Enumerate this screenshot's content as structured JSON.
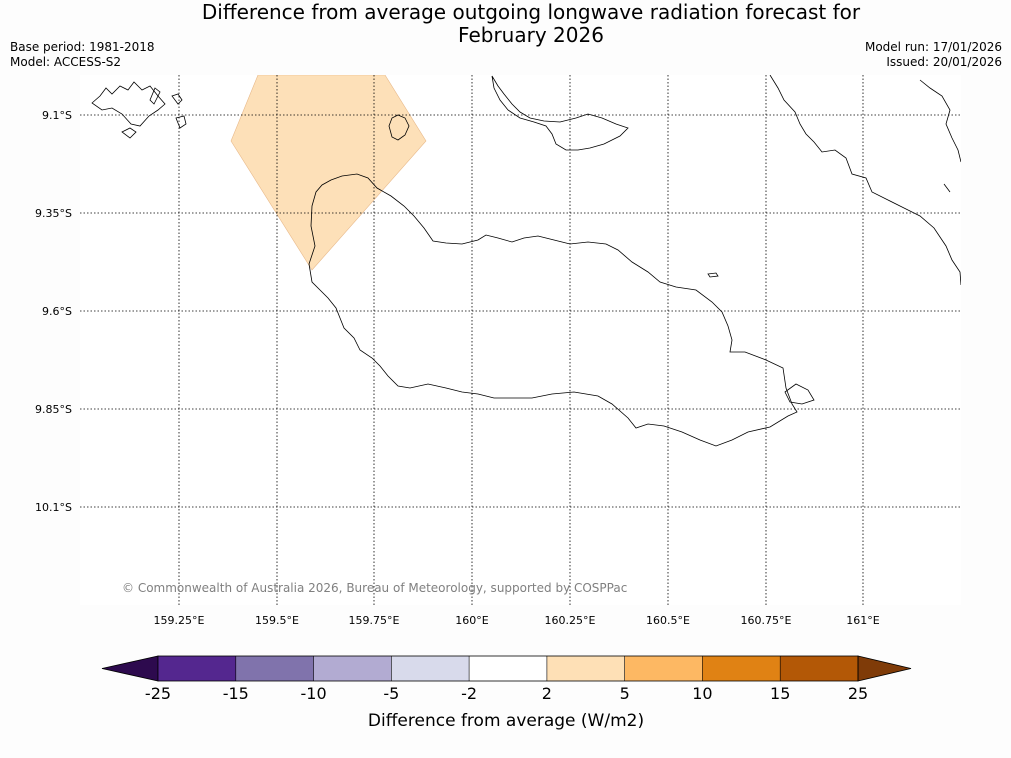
{
  "title": {
    "line1": "Difference from average outgoing longwave radiation forecast for",
    "line2": "February 2026"
  },
  "info_left": {
    "base_period": "Base period: 1981-2018",
    "model": "Model: ACCESS-S2"
  },
  "info_right": {
    "model_run": "Model run: 17/01/2026",
    "issued": "Issued: 20/01/2026"
  },
  "map": {
    "lat_labels": [
      "9.1°S",
      "9.35°S",
      "9.6°S",
      "9.85°S",
      "10.1°S"
    ],
    "lon_labels": [
      "159.25°E",
      "159.5°E",
      "159.75°E",
      "160°E",
      "160.25°E",
      "160.5°E",
      "160.75°E",
      "161°E"
    ],
    "copyright": "© Commonwealth of Australia 2026, Bureau of Meteorology, supported by COSPPac",
    "anomaly_region": {
      "category": "2 to 5",
      "color": "#fde0b8"
    }
  },
  "legend": {
    "title": "Difference from average (W/m2)",
    "tick_labels": [
      "-25",
      "-15",
      "-10",
      "-5",
      "-2",
      "2",
      "5",
      "10",
      "15",
      "25"
    ],
    "colors": {
      "below_min": "#2d0a4e",
      "bins": [
        "#54278f",
        "#8073ac",
        "#b2abd2",
        "#d8daeb",
        "#ffffff",
        "#fee0b6",
        "#fdb863",
        "#e08214",
        "#b35806"
      ],
      "above_max": "#7f3b08"
    }
  }
}
